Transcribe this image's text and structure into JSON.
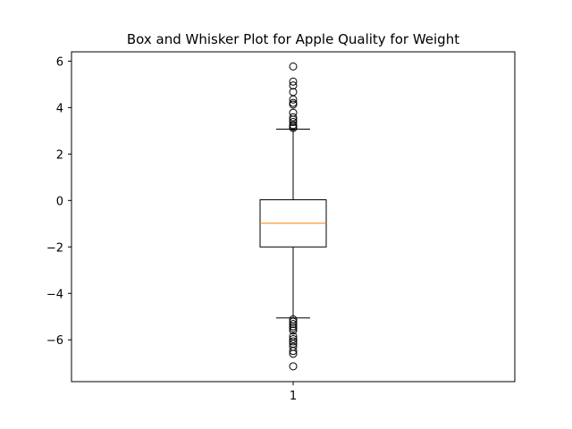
{
  "chart_data": {
    "type": "box",
    "title": "Box and Whisker Plot for Apple Quality for Weight",
    "xlabel": "",
    "ylabel": "",
    "categories": [
      "1"
    ],
    "ylim": [
      -7.8,
      6.4
    ],
    "yticks": [
      6,
      4,
      2,
      0,
      -2,
      -4,
      -6
    ],
    "ytick_labels": [
      "6",
      "4",
      "2",
      "0",
      "−2",
      "−4",
      "−6"
    ],
    "grid": false,
    "box": {
      "q1": -2.0,
      "median": -0.98,
      "q3": 0.03,
      "whisker_low": -5.06,
      "whisker_high": 3.07,
      "outliers": [
        5.77,
        5.12,
        4.95,
        4.67,
        4.35,
        4.2,
        4.13,
        3.78,
        3.58,
        3.48,
        3.38,
        3.25,
        3.18,
        3.12,
        -5.12,
        -5.22,
        -5.32,
        -5.42,
        -5.5,
        -5.6,
        -5.85,
        -5.97,
        -6.07,
        -6.17,
        -6.3,
        -6.48,
        -6.6,
        -7.14
      ]
    },
    "colors": {
      "median": "#ff7f0e",
      "box": "#000000"
    }
  }
}
